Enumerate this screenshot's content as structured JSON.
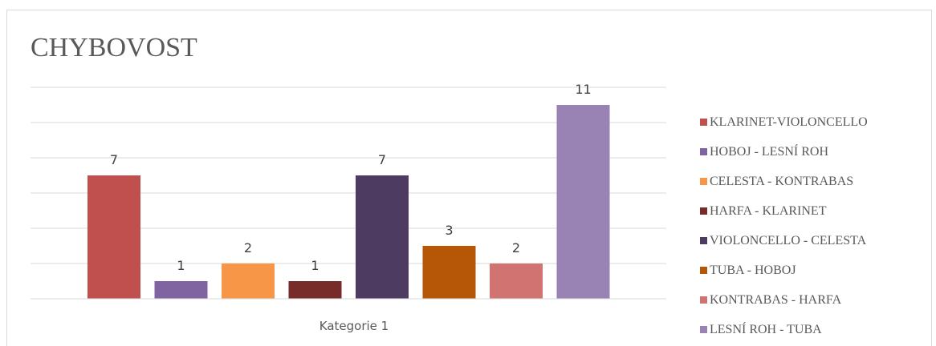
{
  "chart_data": {
    "type": "bar",
    "title": "CHYBOVOST",
    "categories": [
      "Kategorie 1"
    ],
    "ylim": [
      0,
      12
    ],
    "grid": true,
    "legend_position": "right",
    "series": [
      {
        "name": "KLARINET-VIOLONCELLO",
        "values": [
          7
        ],
        "color": "#C0504D"
      },
      {
        "name": "HOBOJ - LESNÍ ROH",
        "values": [
          1
        ],
        "color": "#8064A2"
      },
      {
        "name": "CELESTA - KONTRABAS",
        "values": [
          2
        ],
        "color": "#F79646"
      },
      {
        "name": "HARFA - KLARINET",
        "values": [
          1
        ],
        "color": "#772C2A"
      },
      {
        "name": "VIOLONCELLO - CELESTA",
        "values": [
          7
        ],
        "color": "#4D3B62"
      },
      {
        "name": "TUBA - HOBOJ",
        "values": [
          3
        ],
        "color": "#B65708"
      },
      {
        "name": "KONTRABAS - HARFA",
        "values": [
          2
        ],
        "color": "#D07371"
      },
      {
        "name": "LESNÍ ROH - TUBA",
        "values": [
          11
        ],
        "color": "#9983B5"
      }
    ]
  }
}
